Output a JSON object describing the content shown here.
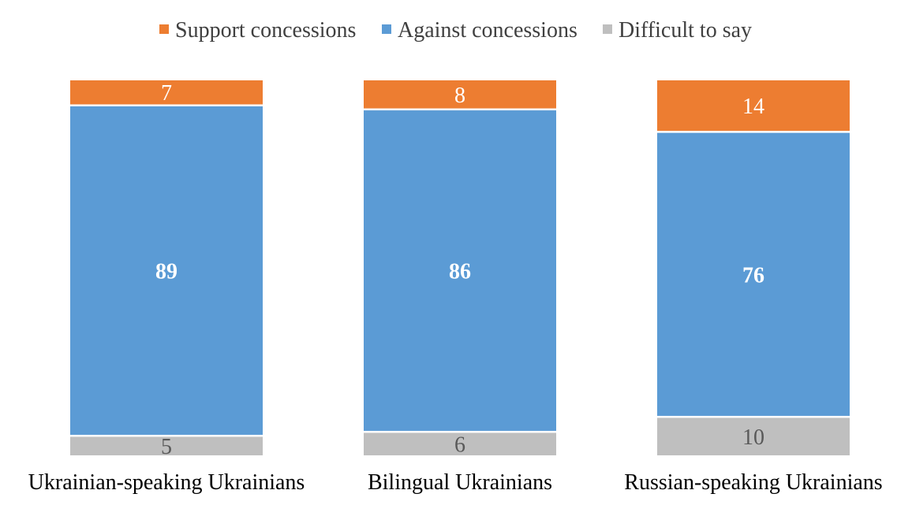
{
  "chart_data": {
    "type": "bar",
    "stacked": true,
    "percent_stacked": true,
    "categories": [
      "Ukrainian-speaking Ukrainians",
      "Bilingual Ukrainians",
      "Russian-speaking Ukrainians"
    ],
    "series": [
      {
        "name": "Support concessions",
        "values": [
          7,
          8,
          14
        ],
        "color": "#ED7D31"
      },
      {
        "name": "Against concessions",
        "values": [
          89,
          86,
          76
        ],
        "color": "#5B9BD5"
      },
      {
        "name": "Difficult to say",
        "values": [
          5,
          6,
          10
        ],
        "color": "#BFBFBF"
      }
    ],
    "stack_order_top_to_bottom": [
      "Support concessions",
      "Against concessions",
      "Difficult to say"
    ],
    "label_colors": {
      "Support concessions": "#ffffff",
      "Against concessions": "#ffffff",
      "Difficult to say": "#595959"
    },
    "bold_labels": [
      "Against concessions"
    ],
    "legend_position": "top",
    "grid": false,
    "axes_visible": false
  }
}
